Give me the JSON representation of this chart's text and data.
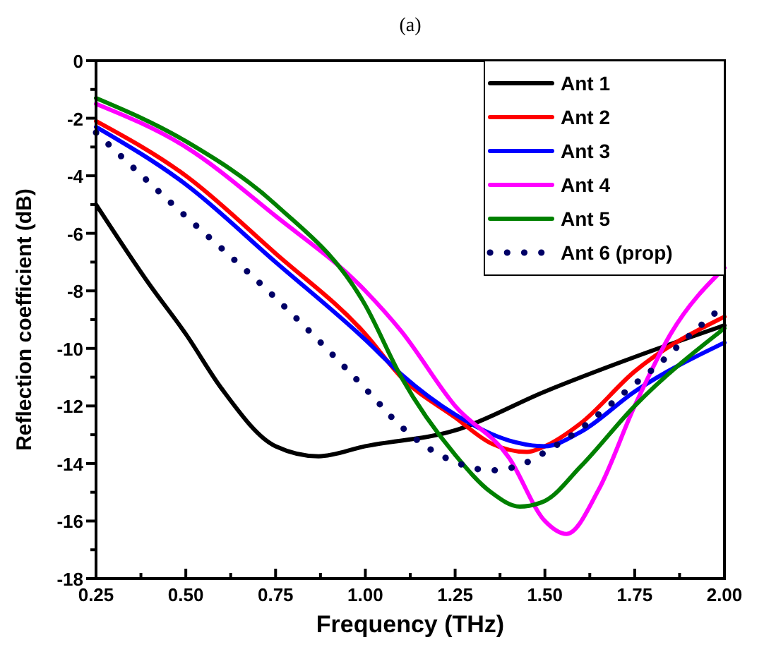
{
  "chart_data": {
    "type": "line",
    "title": "(a)",
    "xlabel": "Frequency (THz)",
    "ylabel": "Reflection coefficient (dB)",
    "xlim": [
      0.25,
      2.0
    ],
    "ylim": [
      -18,
      0
    ],
    "xticks": [
      {
        "value": 0.25,
        "label": "0.25"
      },
      {
        "value": 0.375,
        "label": null
      },
      {
        "value": 0.5,
        "label": "0.50"
      },
      {
        "value": 0.625,
        "label": null
      },
      {
        "value": 0.75,
        "label": "0.75"
      },
      {
        "value": 0.875,
        "label": null
      },
      {
        "value": 1.0,
        "label": "1.00"
      },
      {
        "value": 1.125,
        "label": null
      },
      {
        "value": 1.25,
        "label": "1.25"
      },
      {
        "value": 1.375,
        "label": null
      },
      {
        "value": 1.5,
        "label": "1.50"
      },
      {
        "value": 1.625,
        "label": null
      },
      {
        "value": 1.75,
        "label": "1.75"
      },
      {
        "value": 1.875,
        "label": null
      },
      {
        "value": 2.0,
        "label": "2.00"
      }
    ],
    "yticks": [
      {
        "value": -18,
        "label": "-18"
      },
      {
        "value": -17,
        "label": null
      },
      {
        "value": -16,
        "label": "-16"
      },
      {
        "value": -15,
        "label": null
      },
      {
        "value": -14,
        "label": "-14"
      },
      {
        "value": -13,
        "label": null
      },
      {
        "value": -12,
        "label": "-12"
      },
      {
        "value": -11,
        "label": null
      },
      {
        "value": -10,
        "label": "-10"
      },
      {
        "value": -9,
        "label": null
      },
      {
        "value": -8,
        "label": "-8"
      },
      {
        "value": -7,
        "label": null
      },
      {
        "value": -6,
        "label": "-6"
      },
      {
        "value": -5,
        "label": null
      },
      {
        "value": -4,
        "label": "-4"
      },
      {
        "value": -3,
        "label": null
      },
      {
        "value": -2,
        "label": "-2"
      },
      {
        "value": -1,
        "label": null
      },
      {
        "value": 0,
        "label": "0"
      }
    ],
    "grid": false,
    "legend": "top right",
    "marker": "none",
    "series": [
      {
        "name": "Ant 1",
        "color": "#000000",
        "line_style": "solid",
        "x": [
          0.25,
          0.4,
          0.5,
          0.6,
          0.75,
          0.87,
          1.0,
          1.25,
          1.5,
          1.75,
          2.0
        ],
        "values": [
          -5.0,
          -7.8,
          -9.5,
          -11.4,
          -13.4,
          -13.75,
          -13.4,
          -12.85,
          -11.5,
          -10.3,
          -9.2
        ]
      },
      {
        "name": "Ant 2",
        "color": "#ff0000",
        "line_style": "solid",
        "x": [
          0.25,
          0.5,
          0.75,
          1.0,
          1.1,
          1.25,
          1.35,
          1.45,
          1.5,
          1.6,
          1.75,
          2.0
        ],
        "values": [
          -2.1,
          -4.0,
          -6.7,
          -9.5,
          -11.0,
          -12.4,
          -13.3,
          -13.6,
          -13.4,
          -12.6,
          -10.8,
          -8.9
        ]
      },
      {
        "name": "Ant 3",
        "color": "#0000ff",
        "line_style": "solid",
        "x": [
          0.25,
          0.5,
          0.75,
          1.0,
          1.1,
          1.25,
          1.4,
          1.5,
          1.6,
          1.75,
          2.0
        ],
        "values": [
          -2.3,
          -4.3,
          -7.0,
          -9.7,
          -10.9,
          -12.3,
          -13.2,
          -13.4,
          -12.9,
          -11.5,
          -9.8
        ]
      },
      {
        "name": "Ant 4",
        "color": "#ff00ff",
        "line_style": "solid",
        "x": [
          0.25,
          0.5,
          0.75,
          1.0,
          1.1,
          1.25,
          1.4,
          1.5,
          1.56,
          1.65,
          1.75,
          1.85,
          2.0
        ],
        "values": [
          -1.5,
          -3.0,
          -5.4,
          -8.0,
          -9.4,
          -12.0,
          -13.8,
          -16.0,
          -16.45,
          -14.9,
          -12.0,
          -9.5,
          -7.2
        ]
      },
      {
        "name": "Ant 5",
        "color": "#008000",
        "line_style": "solid",
        "x": [
          0.25,
          0.5,
          0.75,
          1.0,
          1.1,
          1.25,
          1.35,
          1.43,
          1.5,
          1.6,
          1.75,
          2.0
        ],
        "values": [
          -1.3,
          -2.8,
          -5.0,
          -8.5,
          -11.0,
          -13.7,
          -15.0,
          -15.5,
          -15.3,
          -14.1,
          -12.0,
          -9.3
        ]
      },
      {
        "name": "Ant 6 (prop)",
        "color": "#000066",
        "line_style": "dotted",
        "x": [
          0.25,
          0.464,
          0.746,
          1.019,
          1.09,
          1.162,
          1.252,
          1.348,
          1.437,
          1.514,
          1.594,
          1.668,
          1.741,
          1.816,
          1.886,
          1.96,
          2.0
        ],
        "values": [
          -2.5,
          -5.0,
          -8.2,
          -11.65,
          -12.6,
          -13.35,
          -13.96,
          -14.24,
          -14.03,
          -13.5,
          -12.85,
          -12.1,
          -11.33,
          -10.56,
          -9.74,
          -8.92,
          -8.5
        ]
      }
    ]
  }
}
